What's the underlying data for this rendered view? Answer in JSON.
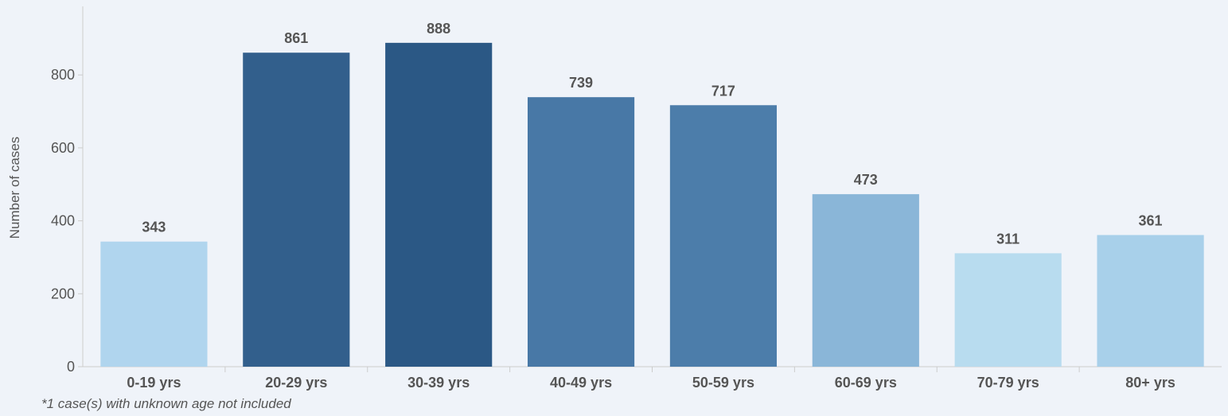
{
  "chart_data": {
    "type": "bar",
    "categories": [
      "0-19 yrs",
      "20-29 yrs",
      "30-39 yrs",
      "40-49 yrs",
      "50-59 yrs",
      "60-69 yrs",
      "70-79 yrs",
      "80+ yrs"
    ],
    "values": [
      343,
      861,
      888,
      739,
      717,
      473,
      311,
      361
    ],
    "colors": [
      "#b0d5ee",
      "#325f8c",
      "#2b5885",
      "#4878a6",
      "#4c7daa",
      "#8ab6d8",
      "#b8dcef",
      "#a8d0ea"
    ],
    "title": "",
    "xlabel": "",
    "ylabel": "Number of cases",
    "ylim": [
      0,
      980
    ],
    "yticks": [
      0,
      200,
      400,
      600,
      800
    ],
    "grid": false,
    "data_labels": true,
    "footnote": "*1 case(s) with unknown age not included"
  }
}
